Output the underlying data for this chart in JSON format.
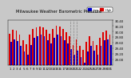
{
  "title": "Milwaukee Weather Barometric Pressure",
  "subtitle": "Daily High/Low",
  "days": [
    1,
    2,
    3,
    4,
    5,
    6,
    7,
    8,
    9,
    10,
    11,
    12,
    13,
    14,
    15,
    16,
    17,
    18,
    19,
    20,
    21,
    22,
    23,
    24,
    25,
    26,
    27,
    28,
    29,
    30,
    31
  ],
  "high": [
    29.92,
    30.05,
    30.02,
    29.88,
    29.68,
    29.55,
    29.88,
    30.1,
    30.15,
    30.18,
    30.15,
    30.05,
    29.92,
    30.08,
    30.22,
    30.18,
    30.08,
    29.98,
    29.82,
    29.52,
    29.72,
    29.48,
    29.35,
    29.62,
    29.82,
    29.65,
    29.52,
    29.78,
    29.98,
    30.02,
    29.88
  ],
  "low": [
    29.62,
    29.72,
    29.65,
    29.48,
    29.28,
    29.18,
    29.52,
    29.78,
    29.82,
    29.88,
    29.82,
    29.68,
    29.58,
    29.78,
    29.88,
    29.82,
    29.68,
    29.58,
    29.38,
    29.18,
    29.32,
    29.08,
    28.88,
    29.28,
    29.48,
    29.32,
    29.18,
    29.48,
    29.68,
    29.72,
    29.52
  ],
  "high_color": "#dd0000",
  "low_color": "#0000cc",
  "bg_color": "#c8c8c8",
  "plot_bg": "#c8c8c8",
  "ylim_min": 28.8,
  "ylim_max": 30.4,
  "vline_days": [
    19,
    20,
    21
  ],
  "legend_high": "High",
  "legend_low": "Low",
  "bar_width": 0.42,
  "title_fontsize": 3.8,
  "tick_fontsize": 3.0,
  "ytick_fontsize": 2.8,
  "yticks": [
    29.0,
    29.2,
    29.4,
    29.6,
    29.8,
    30.0,
    30.2,
    30.4
  ]
}
